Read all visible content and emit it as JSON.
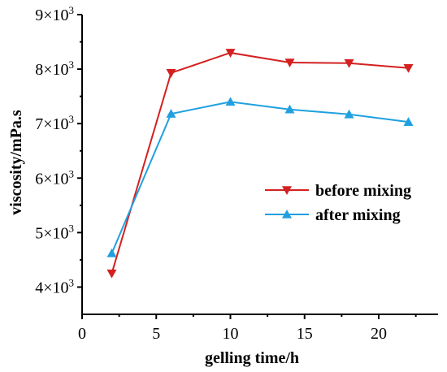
{
  "chart_data": {
    "type": "line",
    "xlabel": "gelling time/h",
    "ylabel": "viscosity/mPa.s",
    "xlim": [
      0,
      24
    ],
    "ylim": [
      3500,
      9000
    ],
    "x_ticks": [
      0,
      5,
      10,
      15,
      20
    ],
    "x_tick_labels": [
      "0",
      "5",
      "10",
      "15",
      "20"
    ],
    "y_ticks": [
      4000,
      5000,
      6000,
      7000,
      8000,
      9000
    ],
    "y_tick_labels": [
      {
        "mant": "4×10",
        "exp": "3"
      },
      {
        "mant": "5×10",
        "exp": "3"
      },
      {
        "mant": "6×10",
        "exp": "3"
      },
      {
        "mant": "7×10",
        "exp": "3"
      },
      {
        "mant": "8×10",
        "exp": "3"
      },
      {
        "mant": "9×10",
        "exp": "3"
      }
    ],
    "grid": false,
    "legend_position": "center-right",
    "series": [
      {
        "name": "before mixing",
        "color": "#d42020",
        "marker": "triangle-down",
        "x": [
          2,
          6,
          10,
          14,
          18,
          22
        ],
        "y": [
          4250,
          7930,
          8300,
          8120,
          8110,
          8020
        ]
      },
      {
        "name": "after mixing",
        "color": "#20a0e0",
        "marker": "triangle-up",
        "x": [
          2,
          6,
          10,
          14,
          18,
          22
        ],
        "y": [
          4620,
          7180,
          7400,
          7260,
          7170,
          7030
        ]
      }
    ]
  }
}
